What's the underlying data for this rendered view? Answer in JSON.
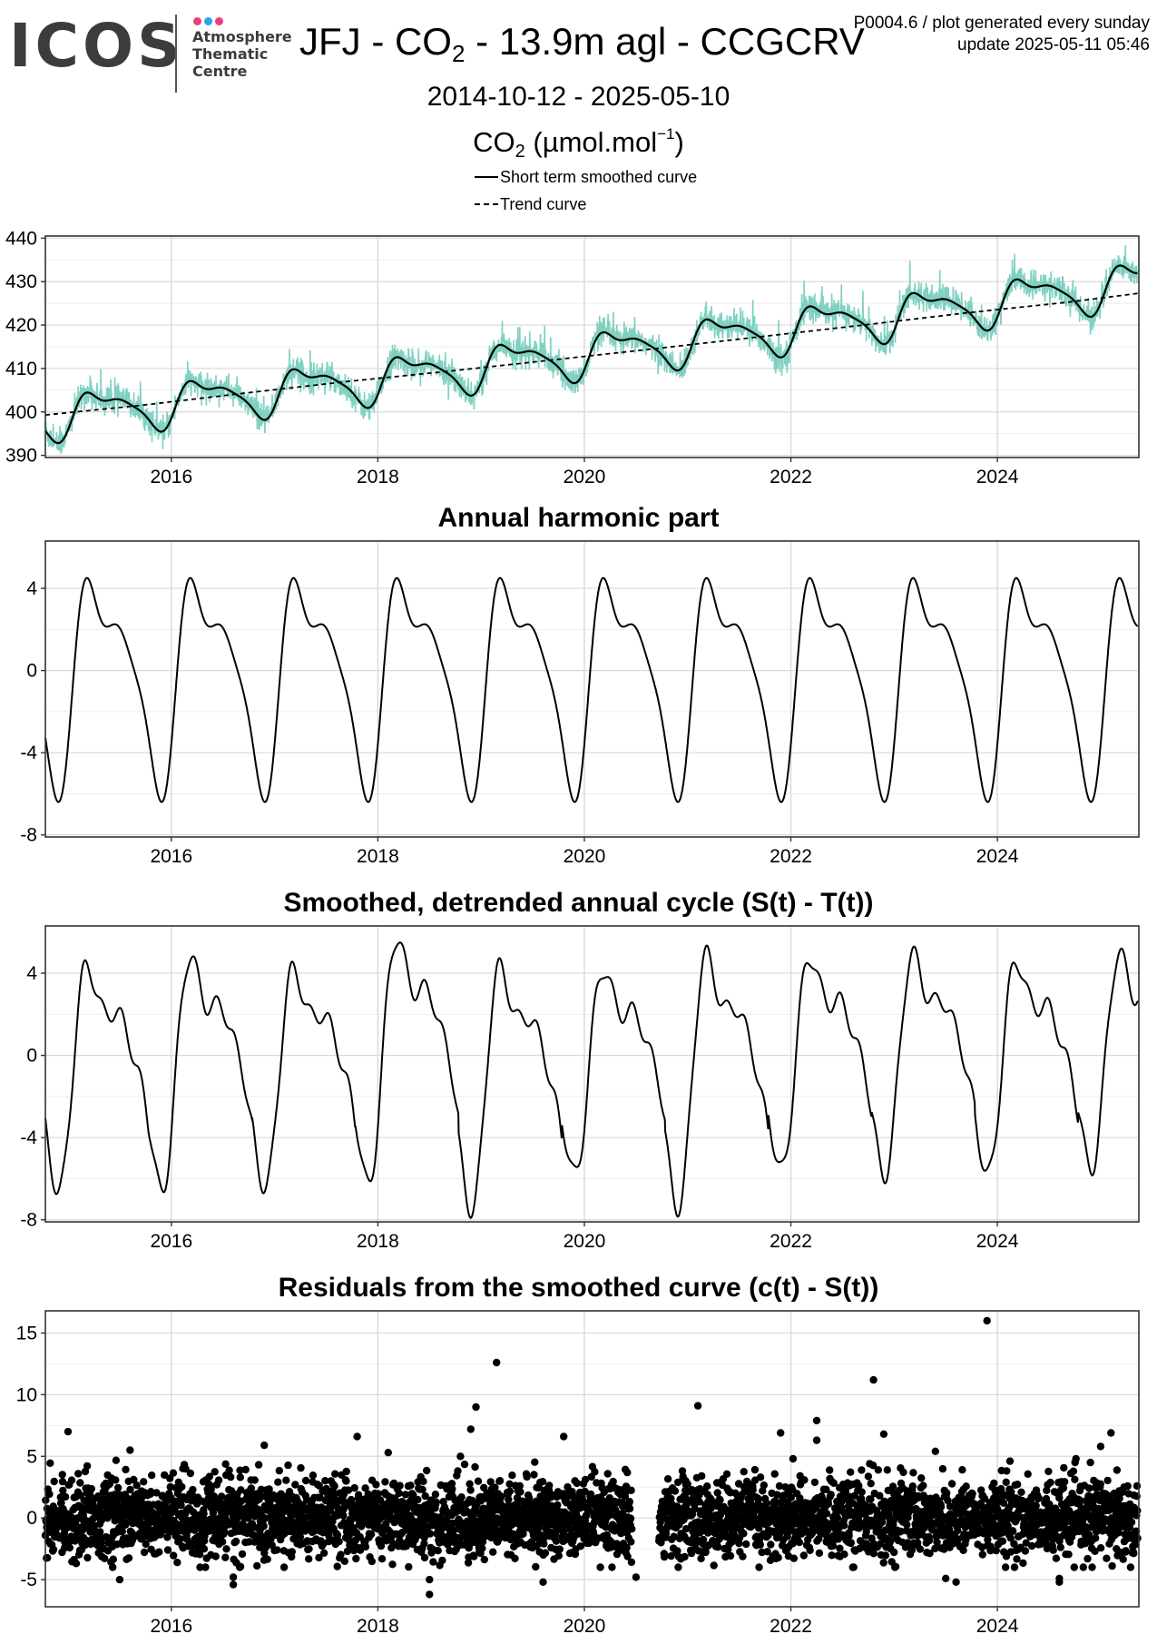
{
  "header": {
    "logo_text": "ICOS",
    "logo_sub": [
      "Atmosphere",
      "Thematic",
      "Centre"
    ],
    "logo_dot_colors": [
      "#e8417c",
      "#2aa7e6",
      "#e8417c"
    ],
    "title_pre": "JFJ - CO",
    "title_sub": "2",
    "title_post": " - 13.9m agl - CCGCRV",
    "meta_line1": "P0004.6 / plot generated every sunday",
    "meta_line2": "update  2025-05-11 05:46",
    "date_range": "2014-10-12 - 2025-05-10",
    "unit_pre": "CO",
    "unit_sub": "2",
    "unit_mid": " (µmol.mol",
    "unit_sup": "−1",
    "unit_post": ")",
    "legend": [
      "Short term smoothed curve",
      "Trend curve"
    ]
  },
  "colors": {
    "observations": "#7fd1c1",
    "curve": "#000000",
    "grid": "#d9d9d9",
    "frame": "#333333"
  },
  "chart_data": [
    {
      "type": "line",
      "title": "",
      "ylabel": "CO2 (µmol.mol−1)",
      "xlim": [
        2014.78,
        2025.37
      ],
      "ylim": [
        389.5,
        440.5
      ],
      "x_ticks": [
        2016,
        2018,
        2020,
        2022,
        2024
      ],
      "y_ticks": [
        390,
        400,
        410,
        420,
        430,
        440
      ],
      "grid": true,
      "series": [
        {
          "name": "Observations",
          "kind": "daily",
          "color": "#7fd1c1",
          "start": 2014.78,
          "end": 2025.36,
          "trend": [
            398.9,
            2.6,
            0.03
          ],
          "harmonic": [
            2.0,
            -1.3,
            1.1,
            -0.4,
            0.3,
            -0.3
          ],
          "spread": 3.0
        },
        {
          "name": "Short term smoothed curve",
          "kind": "smooth",
          "color": "#000000",
          "trend": [
            398.9,
            2.6,
            0.03
          ],
          "harmonic": [
            2.0,
            -1.3,
            1.1,
            -0.4,
            0.3,
            -0.3
          ],
          "x": [
            2014.78,
            2025.36
          ]
        },
        {
          "name": "Trend curve",
          "kind": "trend",
          "color": "#000000",
          "dash": true,
          "values": [
            399.3,
            401.5,
            404.3,
            407.0,
            409.4,
            412.0,
            414.6,
            417.3,
            420.0,
            422.8,
            425.3,
            427.3
          ],
          "x": [
            2014.78,
            2015.7,
            2016.7,
            2017.7,
            2018.7,
            2019.7,
            2020.7,
            2021.7,
            2022.7,
            2023.7,
            2024.7,
            2025.36
          ]
        }
      ]
    },
    {
      "type": "line",
      "title": "Annual harmonic part",
      "xlim": [
        2014.78,
        2025.37
      ],
      "ylim": [
        -8.1,
        6.3
      ],
      "x_ticks": [
        2016,
        2018,
        2020,
        2022,
        2024
      ],
      "y_ticks": [
        -8,
        -4,
        0,
        4
      ],
      "y_tick_labels": [
        "-8",
        "-4",
        "0",
        "4"
      ],
      "grid": true,
      "series": [
        {
          "name": "",
          "kind": "harmonic",
          "color": "#000000",
          "x": [
            2014.78,
            2025.36
          ],
          "harmonic": [
            2.0,
            -1.3,
            1.1,
            -0.4,
            0.3,
            -0.3
          ],
          "peak": 4.5,
          "trough": -6.4
        }
      ]
    },
    {
      "type": "line",
      "title": "Smoothed, detrended annual cycle (S(t) - T(t))",
      "xlim": [
        2014.78,
        2025.37
      ],
      "ylim": [
        -8.1,
        6.3
      ],
      "x_ticks": [
        2016,
        2018,
        2020,
        2022,
        2024
      ],
      "y_ticks": [
        -8,
        -4,
        0,
        4
      ],
      "y_tick_labels": [
        "-8",
        "-4",
        "0",
        "4"
      ],
      "grid": true,
      "series": [
        {
          "name": "",
          "kind": "cycle",
          "color": "#000000",
          "x": [
            2014.78,
            2025.36
          ],
          "harmonic": [
            2.0,
            -1.3,
            1.1,
            -0.4,
            0.3,
            -0.3
          ],
          "yearly_peaks": [
            4.4,
            4.8,
            4.2,
            5.7,
            4.3,
            4.2,
            4.9,
            4.8,
            4.9,
            4.6,
            4.9
          ],
          "yearly_troughs": [
            -6.6,
            -6.6,
            -6.4,
            -6.3,
            -7.5,
            -5.8,
            -7.4,
            -5.6,
            -5.8,
            -5.8,
            -5.5
          ]
        }
      ]
    },
    {
      "type": "scatter",
      "title": "Residuals from the smoothed curve (c(t) - S(t))",
      "xlim": [
        2014.78,
        2025.37
      ],
      "ylim": [
        -7.2,
        16.8
      ],
      "x_ticks": [
        2016,
        2018,
        2020,
        2022,
        2024
      ],
      "y_ticks": [
        -5,
        0,
        5,
        10,
        15
      ],
      "y_tick_labels": [
        "-5",
        "0",
        "5",
        "10",
        "15"
      ],
      "grid": true,
      "series": [
        {
          "name": "",
          "kind": "residuals",
          "color": "#000000",
          "start": 2014.78,
          "end": 2025.36,
          "sd": 1.55,
          "gaps": [
            [
              2020.46,
              2020.72
            ]
          ],
          "outliers": [
            [
              2015.0,
              7.0
            ],
            [
              2015.6,
              5.5
            ],
            [
              2016.9,
              5.9
            ],
            [
              2017.8,
              6.6
            ],
            [
              2018.1,
              5.3
            ],
            [
              2018.8,
              5.0
            ],
            [
              2018.9,
              7.2
            ],
            [
              2018.95,
              9.0
            ],
            [
              2019.15,
              12.6
            ],
            [
              2019.8,
              6.6
            ],
            [
              2021.1,
              9.1
            ],
            [
              2021.9,
              6.9
            ],
            [
              2022.25,
              7.9
            ],
            [
              2022.25,
              6.3
            ],
            [
              2022.8,
              11.2
            ],
            [
              2022.9,
              6.8
            ],
            [
              2023.4,
              5.4
            ],
            [
              2023.9,
              16.0
            ],
            [
              2025.0,
              5.8
            ],
            [
              2025.1,
              6.9
            ],
            [
              2015.5,
              -5.0
            ],
            [
              2016.6,
              -5.4
            ],
            [
              2016.6,
              -4.8
            ],
            [
              2018.5,
              -6.2
            ],
            [
              2018.5,
              -5.0
            ],
            [
              2019.6,
              -5.2
            ],
            [
              2020.5,
              -4.8
            ],
            [
              2022.6,
              -4.0
            ],
            [
              2023.5,
              -4.9
            ],
            [
              2023.6,
              -5.2
            ],
            [
              2024.6,
              -5.2
            ],
            [
              2024.6,
              -4.9
            ]
          ]
        }
      ]
    }
  ]
}
